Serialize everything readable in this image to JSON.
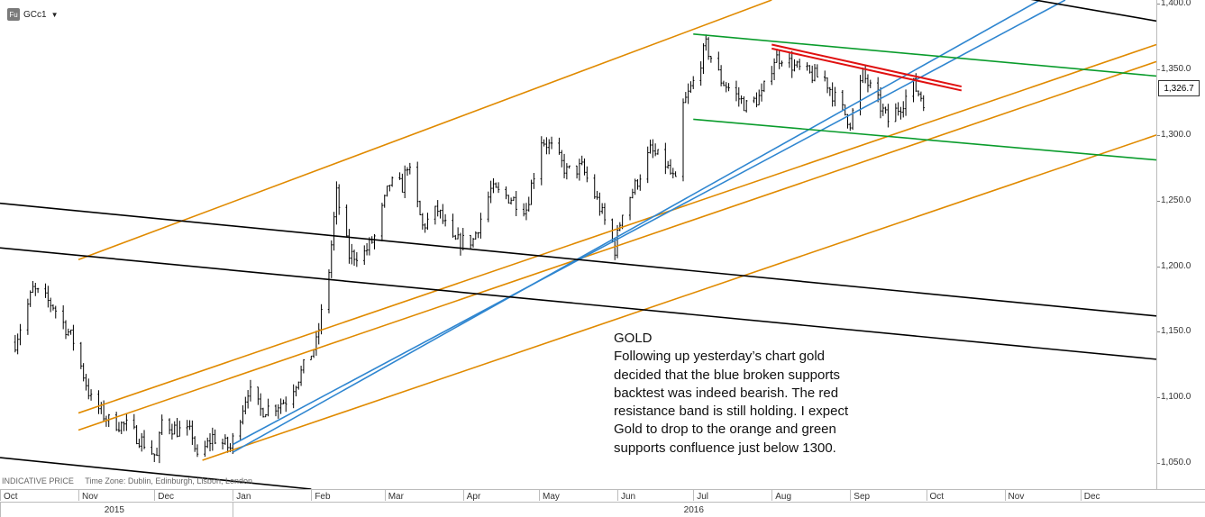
{
  "toolbar": {
    "badge": "Fu",
    "ticker": "GCc1",
    "caret": "▼"
  },
  "price_tag": "1,326.7",
  "annotation": {
    "title": "GOLD",
    "lines": [
      "Following up yesterday’s chart gold",
      "decided that the blue broken supports",
      "backtest was indeed bearish. The red",
      "resistance band is still holding. I expect",
      "Gold to drop to the orange and green",
      "supports confluence just below 1300."
    ]
  },
  "footer": {
    "price_type": "INDICATIVE PRICE",
    "time_zone": "Time Zone: Dublin, Edinburgh, Lisbon, London"
  },
  "colors": {
    "candles": "#000000",
    "orange": "#e08a00",
    "blue": "#2f86d0",
    "green": "#0a9c2c",
    "red": "#e01010",
    "black": "#000000"
  },
  "chart_data": {
    "type": "candlestick",
    "instrument": "GCc1",
    "ylim": [
      1030,
      1403
    ],
    "yticks": [
      1050,
      1100,
      1150,
      1200,
      1250,
      1300,
      1350,
      1400
    ],
    "ytick_labels": [
      "1,050.0",
      "1,100.0",
      "1,150.0",
      "1,200.0",
      "1,250.0",
      "1,300.0",
      "1,350.0",
      "1,400.0"
    ],
    "xlim": [
      "2015-10-01",
      "2016-12-31"
    ],
    "xticks": [
      {
        "date": "2015-10-01",
        "label": "Oct"
      },
      {
        "date": "2015-11-01",
        "label": "Nov"
      },
      {
        "date": "2015-12-01",
        "label": "Dec"
      },
      {
        "date": "2016-01-01",
        "label": "Jan"
      },
      {
        "date": "2016-02-01",
        "label": "Feb"
      },
      {
        "date": "2016-03-01",
        "label": "Mar"
      },
      {
        "date": "2016-04-01",
        "label": "Apr"
      },
      {
        "date": "2016-05-01",
        "label": "May"
      },
      {
        "date": "2016-06-01",
        "label": "Jun"
      },
      {
        "date": "2016-07-01",
        "label": "Jul"
      },
      {
        "date": "2016-08-01",
        "label": "Aug"
      },
      {
        "date": "2016-09-01",
        "label": "Sep"
      },
      {
        "date": "2016-10-01",
        "label": "Oct"
      },
      {
        "date": "2016-11-01",
        "label": "Nov"
      },
      {
        "date": "2016-12-01",
        "label": "Dec"
      }
    ],
    "years": [
      {
        "label": "2015",
        "start": "2015-10-01",
        "end": "2015-12-31"
      },
      {
        "label": "2016",
        "start": "2016-01-01",
        "end": "2016-12-31"
      }
    ],
    "last_price": 1326.7,
    "price_path": [
      [
        "2015-10-07",
        1142
      ],
      [
        "2015-10-14",
        1182
      ],
      [
        "2015-10-22",
        1170
      ],
      [
        "2015-10-30",
        1143
      ],
      [
        "2015-11-06",
        1098
      ],
      [
        "2015-11-13",
        1082
      ],
      [
        "2015-11-20",
        1078
      ],
      [
        "2015-11-27",
        1065
      ],
      [
        "2015-12-02",
        1054
      ],
      [
        "2015-12-04",
        1082
      ],
      [
        "2015-12-10",
        1075
      ],
      [
        "2015-12-16",
        1072
      ],
      [
        "2015-12-18",
        1052
      ],
      [
        "2015-12-24",
        1070
      ],
      [
        "2015-12-31",
        1061
      ],
      [
        "2016-01-07",
        1106
      ],
      [
        "2016-01-12",
        1090
      ],
      [
        "2016-01-18",
        1094
      ],
      [
        "2016-01-22",
        1098
      ],
      [
        "2016-01-28",
        1119
      ],
      [
        "2016-02-03",
        1141
      ],
      [
        "2016-02-08",
        1197
      ],
      [
        "2016-02-11",
        1255
      ],
      [
        "2016-02-16",
        1208
      ],
      [
        "2016-02-22",
        1210
      ],
      [
        "2016-02-26",
        1222
      ],
      [
        "2016-03-03",
        1263
      ],
      [
        "2016-03-08",
        1261
      ],
      [
        "2016-03-10",
        1278
      ],
      [
        "2016-03-16",
        1230
      ],
      [
        "2016-03-22",
        1243
      ],
      [
        "2016-03-28",
        1218
      ],
      [
        "2016-04-05",
        1220
      ],
      [
        "2016-04-12",
        1258
      ],
      [
        "2016-04-20",
        1252
      ],
      [
        "2016-04-26",
        1244
      ],
      [
        "2016-05-02",
        1297
      ],
      [
        "2016-05-06",
        1290
      ],
      [
        "2016-05-12",
        1272
      ],
      [
        "2016-05-18",
        1275
      ],
      [
        "2016-05-24",
        1250
      ],
      [
        "2016-05-31",
        1213
      ],
      [
        "2016-06-03",
        1243
      ],
      [
        "2016-06-08",
        1261
      ],
      [
        "2016-06-14",
        1288
      ],
      [
        "2016-06-20",
        1278
      ],
      [
        "2016-06-24",
        1263
      ],
      [
        "2016-06-27",
        1322
      ],
      [
        "2016-07-01",
        1340
      ],
      [
        "2016-07-06",
        1368
      ],
      [
        "2016-07-12",
        1342
      ],
      [
        "2016-07-18",
        1330
      ],
      [
        "2016-07-22",
        1322
      ],
      [
        "2016-07-28",
        1330
      ],
      [
        "2016-08-02",
        1358
      ],
      [
        "2016-08-05",
        1360
      ],
      [
        "2016-08-10",
        1352
      ],
      [
        "2016-08-16",
        1346
      ],
      [
        "2016-08-22",
        1343
      ],
      [
        "2016-08-26",
        1328
      ],
      [
        "2016-09-01",
        1310
      ],
      [
        "2016-09-06",
        1346
      ],
      [
        "2016-09-12",
        1325
      ],
      [
        "2016-09-16",
        1311
      ],
      [
        "2016-09-21",
        1323
      ],
      [
        "2016-09-26",
        1338
      ],
      [
        "2016-09-30",
        1326.7
      ]
    ],
    "trendlines": [
      {
        "color": "orange",
        "from": [
          "2015-11-01",
          1205
        ],
        "to": [
          "2016-08-01",
          1403
        ]
      },
      {
        "color": "orange",
        "from": [
          "2015-11-01",
          1088
        ],
        "to": [
          "2016-12-31",
          1369
        ]
      },
      {
        "color": "orange",
        "from": [
          "2015-11-01",
          1075
        ],
        "to": [
          "2016-12-31",
          1356
        ]
      },
      {
        "color": "orange",
        "from": [
          "2015-12-20",
          1052
        ],
        "to": [
          "2016-12-31",
          1300
        ]
      },
      {
        "color": "blue",
        "from": [
          "2016-01-01",
          1064
        ],
        "to": [
          "2016-11-25",
          1403
        ]
      },
      {
        "color": "blue",
        "from": [
          "2016-01-01",
          1058
        ],
        "to": [
          "2016-11-15",
          1403
        ]
      },
      {
        "color": "green",
        "from": [
          "2016-07-01",
          1377
        ],
        "to": [
          "2016-12-31",
          1345
        ]
      },
      {
        "color": "green",
        "from": [
          "2016-07-01",
          1312
        ],
        "to": [
          "2016-12-31",
          1281
        ]
      },
      {
        "color": "red",
        "from": [
          "2016-08-01",
          1369
        ],
        "to": [
          "2016-10-15",
          1337
        ]
      },
      {
        "color": "red",
        "from": [
          "2016-08-01",
          1366
        ],
        "to": [
          "2016-10-15",
          1334
        ]
      },
      {
        "color": "black",
        "from": [
          "2015-10-01",
          1248
        ],
        "to": [
          "2016-12-31",
          1162
        ]
      },
      {
        "color": "black",
        "from": [
          "2015-10-01",
          1214
        ],
        "to": [
          "2016-12-31",
          1129
        ]
      },
      {
        "color": "black",
        "from": [
          "2015-10-01",
          1054
        ],
        "to": [
          "2016-02-01",
          1030
        ]
      },
      {
        "color": "black",
        "from": [
          "2016-11-10",
          1404
        ],
        "to": [
          "2016-12-31",
          1387
        ]
      }
    ]
  }
}
